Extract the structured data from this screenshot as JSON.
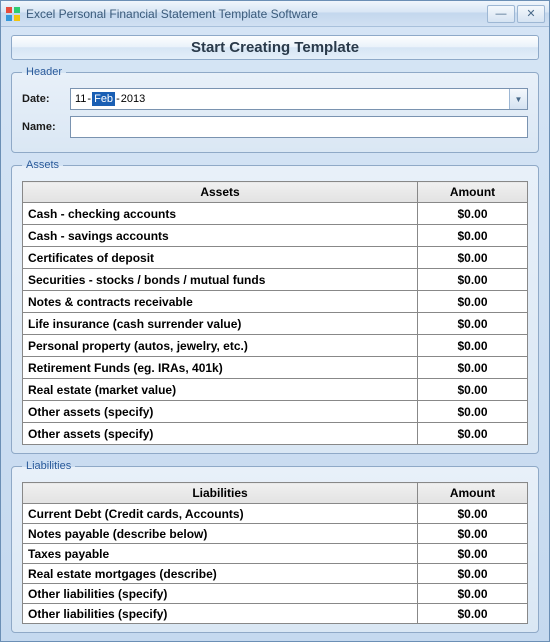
{
  "window": {
    "title": "Excel Personal Financial Statement Template Software"
  },
  "main_button": "Start Creating Template",
  "header": {
    "legend": "Header",
    "date_label": "Date:",
    "name_label": "Name:",
    "date": {
      "day": "11",
      "month": "Feb",
      "year": "2013"
    },
    "name_value": ""
  },
  "assets": {
    "legend": "Assets",
    "col_label": "Assets",
    "col_amount": "Amount",
    "rows": [
      {
        "label": "Cash - checking accounts",
        "amount": "$0.00"
      },
      {
        "label": "Cash - savings accounts",
        "amount": "$0.00"
      },
      {
        "label": "Certificates of deposit",
        "amount": "$0.00"
      },
      {
        "label": "Securities - stocks / bonds / mutual funds",
        "amount": "$0.00"
      },
      {
        "label": "Notes & contracts receivable",
        "amount": "$0.00"
      },
      {
        "label": "Life insurance (cash surrender value)",
        "amount": "$0.00"
      },
      {
        "label": "Personal property (autos, jewelry, etc.)",
        "amount": "$0.00"
      },
      {
        "label": "Retirement Funds (eg. IRAs, 401k)",
        "amount": "$0.00"
      },
      {
        "label": "Real estate (market value)",
        "amount": "$0.00"
      },
      {
        "label": "Other assets (specify)",
        "amount": "$0.00"
      },
      {
        "label": "Other assets (specify)",
        "amount": "$0.00"
      }
    ]
  },
  "liabilities": {
    "legend": "Liabilities",
    "col_label": "Liabilities",
    "col_amount": "Amount",
    "rows": [
      {
        "label": "Current Debt (Credit cards, Accounts)",
        "amount": "$0.00"
      },
      {
        "label": "Notes payable (describe below)",
        "amount": "$0.00"
      },
      {
        "label": "Taxes payable",
        "amount": "$0.00"
      },
      {
        "label": "Real estate mortgages (describe)",
        "amount": "$0.00"
      },
      {
        "label": "Other liabilities (specify)",
        "amount": "$0.00"
      },
      {
        "label": "Other liabilities (specify)",
        "amount": "$0.00"
      }
    ]
  }
}
